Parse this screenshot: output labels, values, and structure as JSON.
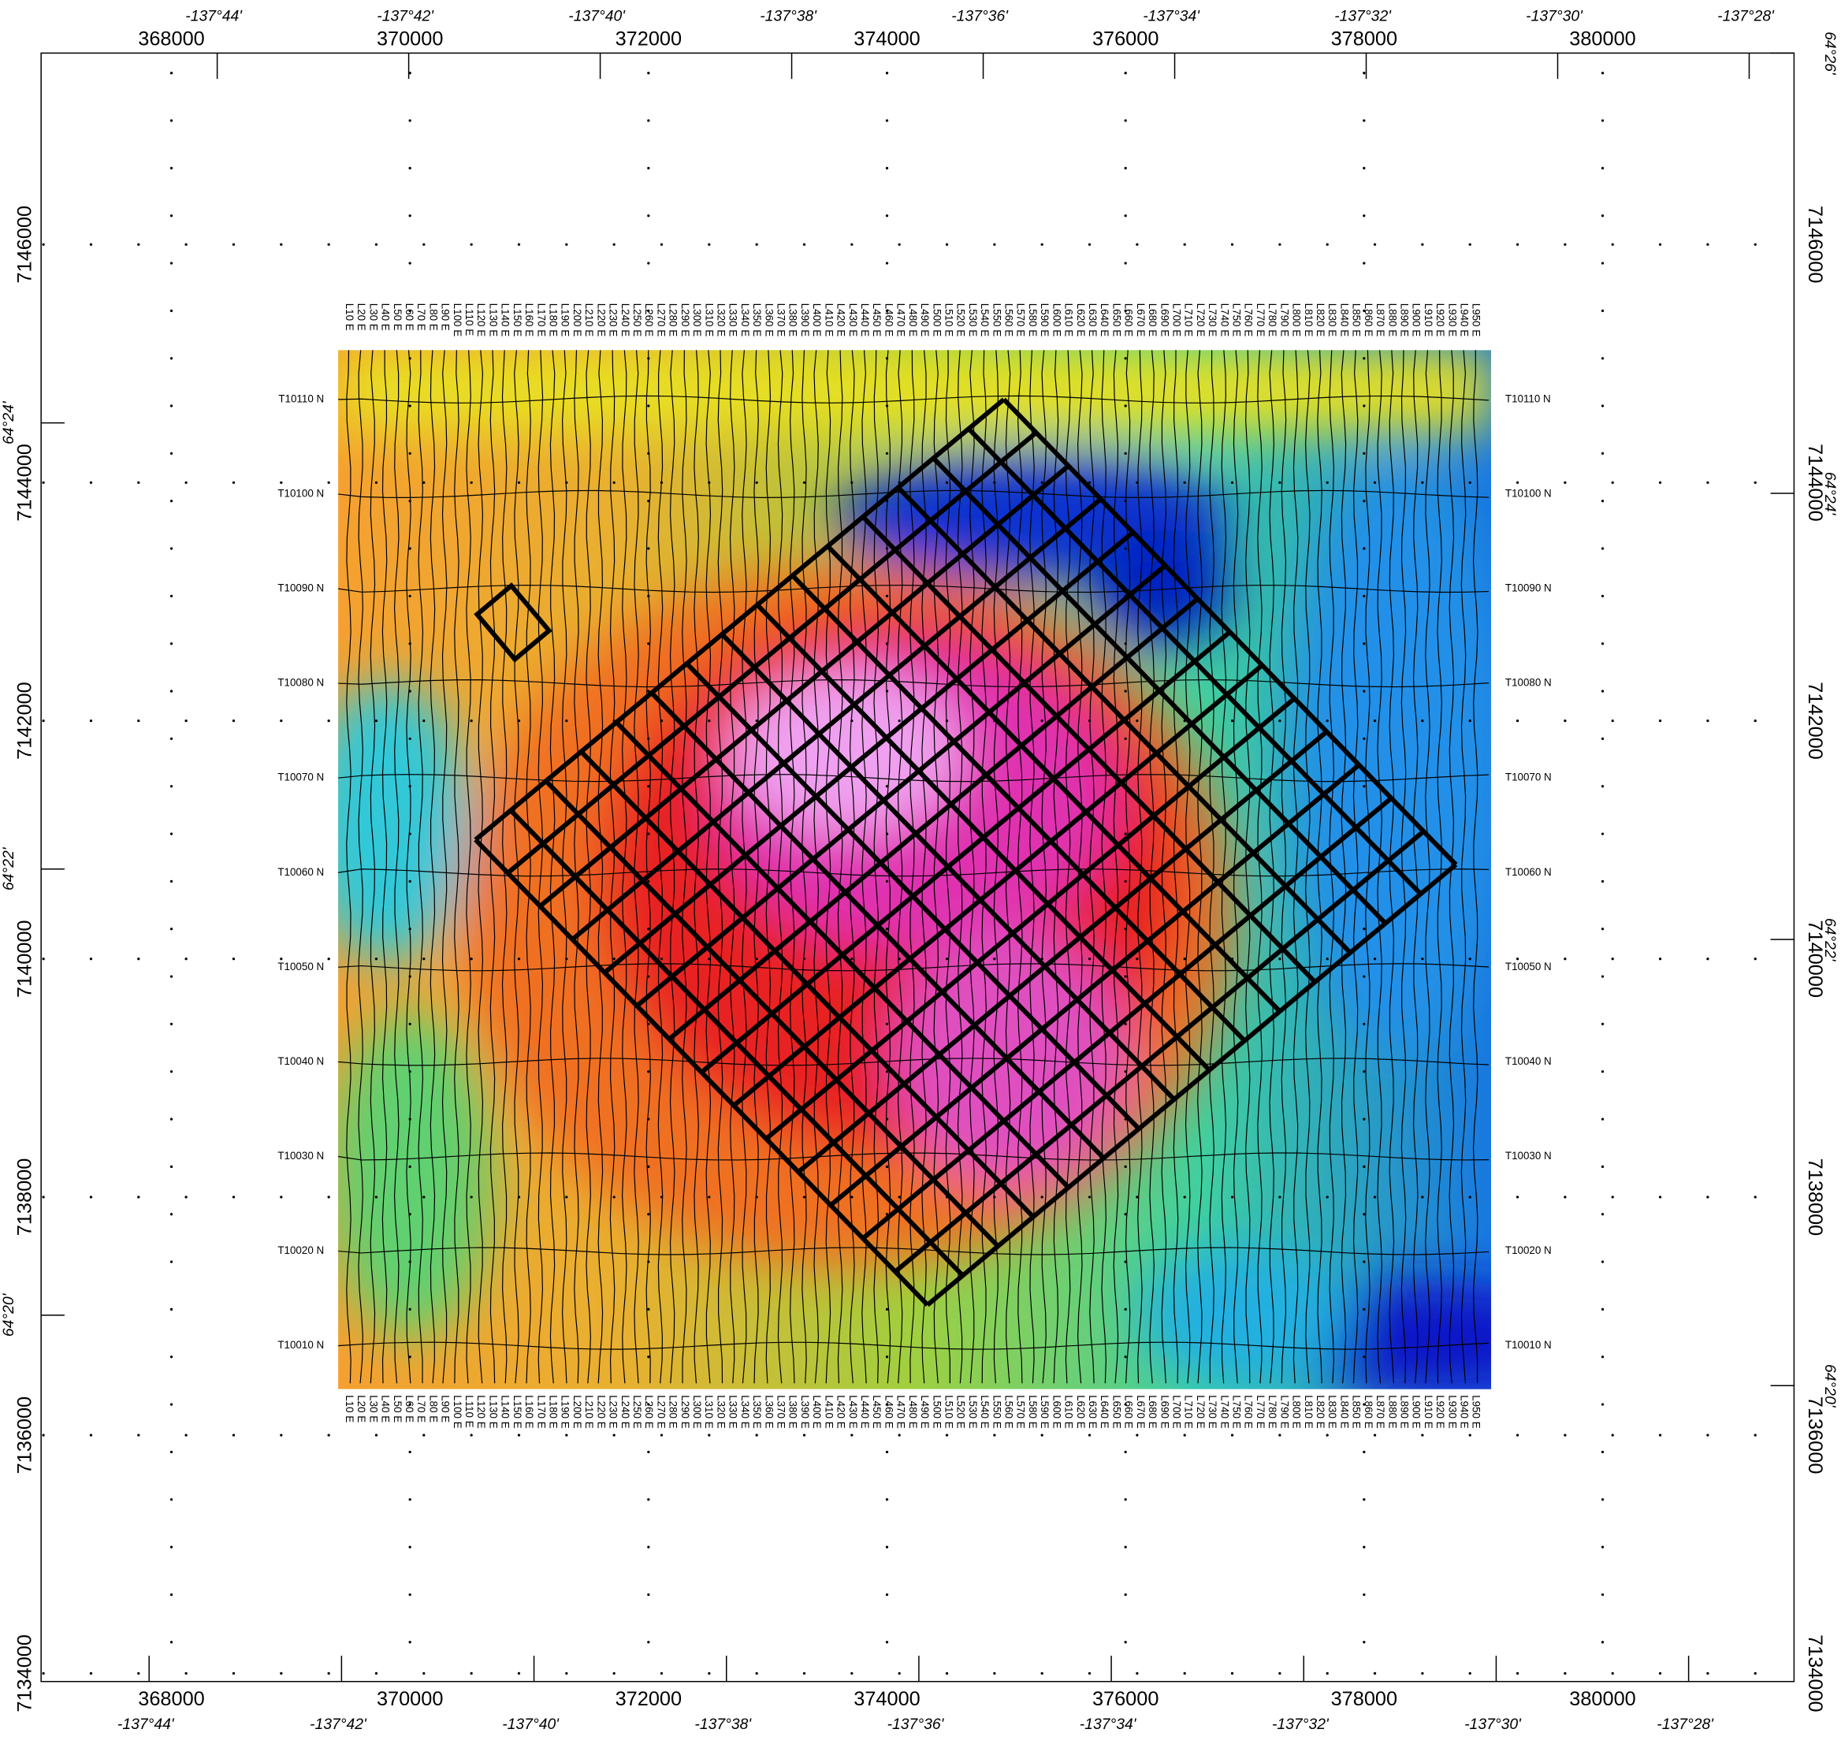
{
  "map": {
    "eastings": [
      368000,
      370000,
      372000,
      374000,
      376000,
      378000,
      380000
    ],
    "northings": [
      7146000,
      7144000,
      7142000,
      7140000,
      7138000,
      7136000,
      7134000
    ],
    "longitudes": [
      "-137°44'",
      "-137°42'",
      "-137°40'",
      "-137°38'",
      "-137°36'",
      "-137°34'",
      "-137°32'",
      "-137°30'",
      "-137°28'"
    ],
    "latitudes_left": [
      "64°24'",
      "64°22'",
      "64°20'"
    ],
    "latitudes_right": [
      "64°26'",
      "64°24'",
      "64°22'",
      "64°20'"
    ],
    "survey_lines": [
      "L10 E",
      "L20 E",
      "L30 E",
      "L40 E",
      "L50 E",
      "L60 E",
      "L70 E",
      "L80 E",
      "L90 E",
      "L100 E",
      "L110 E",
      "L120 E",
      "L130 E",
      "L140 E",
      "L150 E",
      "L160 E",
      "L170 E",
      "L180 E",
      "L190 E",
      "L200 E",
      "L210 E",
      "L220 E",
      "L230 E",
      "L240 E",
      "L250 E",
      "L260 E",
      "L270 E",
      "L280 E",
      "L290 E",
      "L300 E",
      "L310 E",
      "L320 E",
      "L330 E",
      "L340 E",
      "L350 E",
      "L360 E",
      "L370 E",
      "L380 E",
      "L390 E",
      "L400 E",
      "L410 E",
      "L420 E",
      "L430 E",
      "L440 E",
      "L450 E",
      "L460 E",
      "L470 E",
      "L480 E",
      "L490 E",
      "L500 E",
      "L510 E",
      "L520 E",
      "L530 E",
      "L540 E",
      "L550 E",
      "L560 E",
      "L570 E",
      "L580 E",
      "L590 E",
      "L600 E",
      "L610 E",
      "L620 E",
      "L630 E",
      "L640 E",
      "L650 E",
      "L660 E",
      "L670 E",
      "L680 E",
      "L690 E",
      "L700 E",
      "L710 E",
      "L720 E",
      "L730 E",
      "L740 E",
      "L750 E",
      "L760 E",
      "L770 E",
      "L780 E",
      "L790 E",
      "L800 E",
      "L810 E",
      "L820 E",
      "L830 E",
      "L840 E",
      "L850 E",
      "L860 E",
      "L870 E",
      "L880 E",
      "L890 E",
      "L900 E",
      "L910 E",
      "L920 E",
      "L930 E",
      "L940 E",
      "L950 E"
    ],
    "tie_lines": [
      "T10110 N",
      "T10100 N",
      "T10090 N",
      "T10080 N",
      "T10070 N",
      "T10060 N",
      "T10050 N",
      "T10040 N",
      "T10030 N",
      "T10020 N",
      "T10010 N"
    ]
  }
}
